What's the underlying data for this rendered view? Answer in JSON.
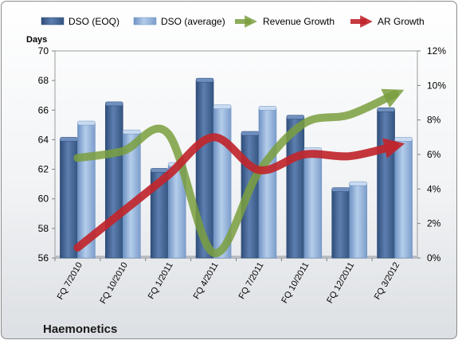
{
  "chart_data": {
    "type": "bar",
    "title": "Haemonetics",
    "ylabel": "Days",
    "categories": [
      "FQ 7/2010",
      "FQ 10/2010",
      "FQ 1/2011",
      "FQ 4/2011",
      "FQ 7/2011",
      "FQ 10/2011",
      "FQ 12/2011",
      "FQ 3/2012"
    ],
    "ylim": [
      56,
      70
    ],
    "yticks": [
      56,
      58,
      60,
      62,
      64,
      66,
      68,
      70
    ],
    "y2lim": [
      0,
      12
    ],
    "y2ticks": [
      "0%",
      "2%",
      "4%",
      "6%",
      "8%",
      "10%",
      "12%"
    ],
    "grid": false,
    "legend": "top",
    "series": [
      {
        "name": "DSO (EOQ)",
        "kind": "bar",
        "axis": "left",
        "color": "#4a6b9a",
        "values": [
          64.0,
          66.4,
          61.9,
          68.0,
          64.4,
          65.5,
          60.6,
          66.0
        ]
      },
      {
        "name": "DSO (average)",
        "kind": "bar",
        "axis": "left",
        "color": "#8fb2dc",
        "values": [
          65.1,
          64.5,
          62.3,
          66.2,
          66.1,
          63.3,
          61.0,
          64.0
        ]
      },
      {
        "name": "Revenue Growth",
        "kind": "line",
        "axis": "right",
        "color": "#7a9f3e",
        "values": [
          5.8,
          6.2,
          7.2,
          0.3,
          5.0,
          7.8,
          8.3,
          9.5
        ]
      },
      {
        "name": "AR Growth",
        "kind": "line",
        "axis": "right",
        "color": "#c0262d",
        "values": [
          0.6,
          2.7,
          4.8,
          7.0,
          5.1,
          6.0,
          5.9,
          6.5
        ]
      }
    ]
  }
}
